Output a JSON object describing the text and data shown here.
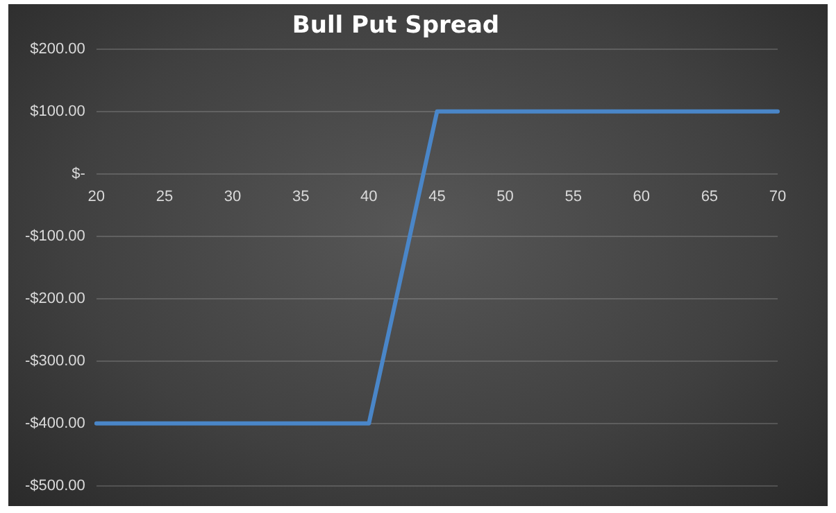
{
  "chart_data": {
    "type": "line",
    "title": "Bull Put Spread",
    "categories": [
      "20",
      "25",
      "30",
      "35",
      "40",
      "45",
      "50",
      "55",
      "60",
      "65",
      "70"
    ],
    "series": [
      {
        "color": "#4a86c8",
        "values": [
          -400,
          -400,
          -400,
          -400,
          -400,
          100,
          100,
          100,
          100,
          100,
          100
        ]
      }
    ],
    "ylim": [
      -500,
      200
    ],
    "yticks": [
      {
        "value": -500,
        "label": "-$500.00"
      },
      {
        "value": -400,
        "label": "-$400.00"
      },
      {
        "value": -300,
        "label": "-$300.00"
      },
      {
        "value": -200,
        "label": "-$200.00"
      },
      {
        "value": -100,
        "label": "-$100.00"
      },
      {
        "value": 0,
        "label": "$-"
      },
      {
        "value": 100,
        "label": "$100.00"
      },
      {
        "value": 200,
        "label": "$200.00"
      }
    ],
    "grid": "y",
    "legend": false,
    "marker": "none",
    "line_style": "solid"
  }
}
